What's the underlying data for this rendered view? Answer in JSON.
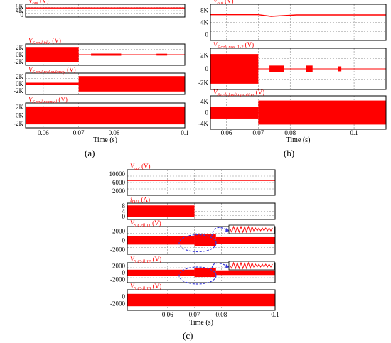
{
  "colors": {
    "signal": "#ff0000",
    "frame": "#000000",
    "grid": "#8c8c8c",
    "zoom": "#3a3ad8"
  },
  "subfigures": [
    {
      "label": "(a)",
      "xlabel": "Time (s)",
      "xticks": [
        "0.06",
        "0.07",
        "0.08",
        "0.1"
      ]
    },
    {
      "label": "(b)",
      "xlabel": "Time (s)",
      "xticks": [
        "0.06",
        "0.07",
        "0.08",
        "0.1"
      ]
    },
    {
      "label": "(c)",
      "xlabel": "Time (s)",
      "xticks": [
        "0.06",
        "0.07",
        "0.08",
        "0.1"
      ]
    }
  ],
  "chart_data": [
    {
      "type": "line",
      "subfigure": "(a)",
      "xlabel": "Time (s)",
      "xticks": [
        0.06,
        0.07,
        0.08,
        0.1
      ],
      "xlim": [
        0.055,
        0.1
      ],
      "panels": [
        {
          "title": "V_out (V)",
          "title_main": "V",
          "title_sub": "out",
          "unit": " (V)",
          "yticks": [
            "8K",
            "4K",
            "0"
          ],
          "ylim": [
            0,
            9000
          ],
          "x": [
            0.055,
            0.1
          ],
          "y": [
            6400,
            6400
          ]
        },
        {
          "title": "V_S cell idle (V)",
          "title_main": "V",
          "title_sub": "S cell idle",
          "unit": " (V)",
          "yticks": [
            "2K",
            "0K",
            "-2K"
          ],
          "ylim": [
            -2500,
            2500
          ],
          "envelope": [
            {
              "x0": 0.055,
              "x1": 0.07,
              "amplitude": 1800
            },
            {
              "x0": 0.0735,
              "x1": 0.082,
              "amplitude": 250
            },
            {
              "x0": 0.092,
              "x1": 0.095,
              "amplitude": 220
            }
          ]
        },
        {
          "title": "V_S cell redundancy (V)",
          "title_main": "V",
          "title_sub": "S cell redundancy",
          "unit": " (V)",
          "yticks": [
            "2K",
            "0K",
            "-2K"
          ],
          "ylim": [
            -2500,
            2500
          ],
          "envelope": [
            {
              "x0": 0.055,
              "x1": 0.07,
              "amplitude": 250
            },
            {
              "x0": 0.07,
              "x1": 0.1,
              "amplitude": 1800
            }
          ]
        },
        {
          "title": "V_S cell normal (V)",
          "title_main": "V",
          "title_sub": "S cell normal",
          "unit": " (V)",
          "yticks": [
            "2K",
            "0K",
            "-2K"
          ],
          "ylim": [
            -2500,
            2500
          ],
          "envelope": [
            {
              "x0": 0.055,
              "x1": 0.1,
              "amplitude": 1800
            }
          ]
        }
      ]
    },
    {
      "type": "line",
      "subfigure": "(b)",
      "xlabel": "Time (s)",
      "xticks": [
        0.06,
        0.07,
        0.08,
        0.1
      ],
      "xlim": [
        0.055,
        0.11
      ],
      "panels": [
        {
          "title": "V_out (V)",
          "title_main": "V",
          "title_sub": "out",
          "unit": " (V)",
          "yticks": [
            "8K",
            "4K",
            "0"
          ],
          "ylim": [
            0,
            9000
          ],
          "x": [
            0.055,
            0.07,
            0.074,
            0.078,
            0.082,
            0.11
          ],
          "y": [
            6400,
            6400,
            6000,
            6200,
            6350,
            6350
          ]
        },
        {
          "title": "V_S cell nos. 1-2 (V)",
          "title_main": "V",
          "title_sub": "S cell nos. 1-2",
          "unit": " (V)",
          "yticks": [
            "2K",
            "0",
            "-2K"
          ],
          "ylim": [
            -2500,
            2500
          ],
          "envelope": [
            {
              "x0": 0.055,
              "x1": 0.07,
              "amplitude": 1800
            },
            {
              "x0": 0.0735,
              "x1": 0.078,
              "amplitude": 400
            },
            {
              "x0": 0.085,
              "x1": 0.087,
              "amplitude": 400
            },
            {
              "x0": 0.095,
              "x1": 0.096,
              "amplitude": 300
            }
          ]
        },
        {
          "title": "V_S cell fault opration (V)",
          "title_main": "V",
          "title_sub": "S cell fault opration",
          "unit": " (V)",
          "yticks": [
            "4K",
            "0",
            "-4K"
          ],
          "ylim": [
            -5000,
            5000
          ],
          "envelope": [
            {
              "x0": 0.055,
              "x1": 0.07,
              "amplitude": 1800
            },
            {
              "x0": 0.07,
              "x1": 0.11,
              "amplitude": 3600
            }
          ]
        }
      ]
    },
    {
      "type": "line",
      "subfigure": "(c)",
      "xlabel": "Time (s)",
      "xticks": [
        0.06,
        0.07,
        0.08,
        0.1
      ],
      "xlim": [
        0.045,
        0.1
      ],
      "panels": [
        {
          "title": "V_out (V)",
          "title_main": "V",
          "title_sub": "out",
          "unit": " (V)",
          "yticks": [
            "10000",
            "6000",
            "2000"
          ],
          "ylim": [
            0,
            11000
          ],
          "x": [
            0.045,
            0.1
          ],
          "y": [
            6400,
            6400
          ]
        },
        {
          "title": "i_D11 (A)",
          "title_main": "i",
          "title_sub": "D11",
          "unit": " (A)",
          "yticks": [
            "8",
            "4",
            "0"
          ],
          "ylim": [
            -2,
            12
          ],
          "envelope": [
            {
              "x0": 0.045,
              "x1": 0.07,
              "amplitude": 5
            }
          ]
        },
        {
          "title": "V_S Cell 11 (V)",
          "title_main": "V",
          "title_sub": "S Cell 11",
          "unit": " (V)",
          "yticks": [
            "2000",
            "0",
            "-2000"
          ],
          "ylim": [
            -3000,
            3000
          ],
          "envelope": [
            {
              "x0": 0.045,
              "x1": 0.07,
              "amplitude": 900
            },
            {
              "x0": 0.07,
              "x1": 0.078,
              "amplitude": 1300
            },
            {
              "x0": 0.078,
              "x1": 0.1,
              "amplitude": 700
            }
          ]
        },
        {
          "title": "V_S Cell 12 (V)",
          "title_main": "V",
          "title_sub": "S Cell 12",
          "unit": " (V)",
          "yticks": [
            "2000",
            "0",
            "-2000"
          ],
          "ylim": [
            -3000,
            3000
          ],
          "envelope": [
            {
              "x0": 0.045,
              "x1": 0.07,
              "amplitude": 900
            },
            {
              "x0": 0.07,
              "x1": 0.078,
              "amplitude": 1300
            },
            {
              "x0": 0.078,
              "x1": 0.1,
              "amplitude": 700
            }
          ]
        },
        {
          "title": "V_S Cell 13 (V)",
          "title_main": "V",
          "title_sub": "S Cell 13",
          "unit": " (V)",
          "yticks": [
            "0",
            "-2000"
          ],
          "ylim": [
            -3000,
            3000
          ],
          "envelope": [
            {
              "x0": 0.045,
              "x1": 0.1,
              "amplitude": 1800
            }
          ]
        }
      ]
    }
  ]
}
